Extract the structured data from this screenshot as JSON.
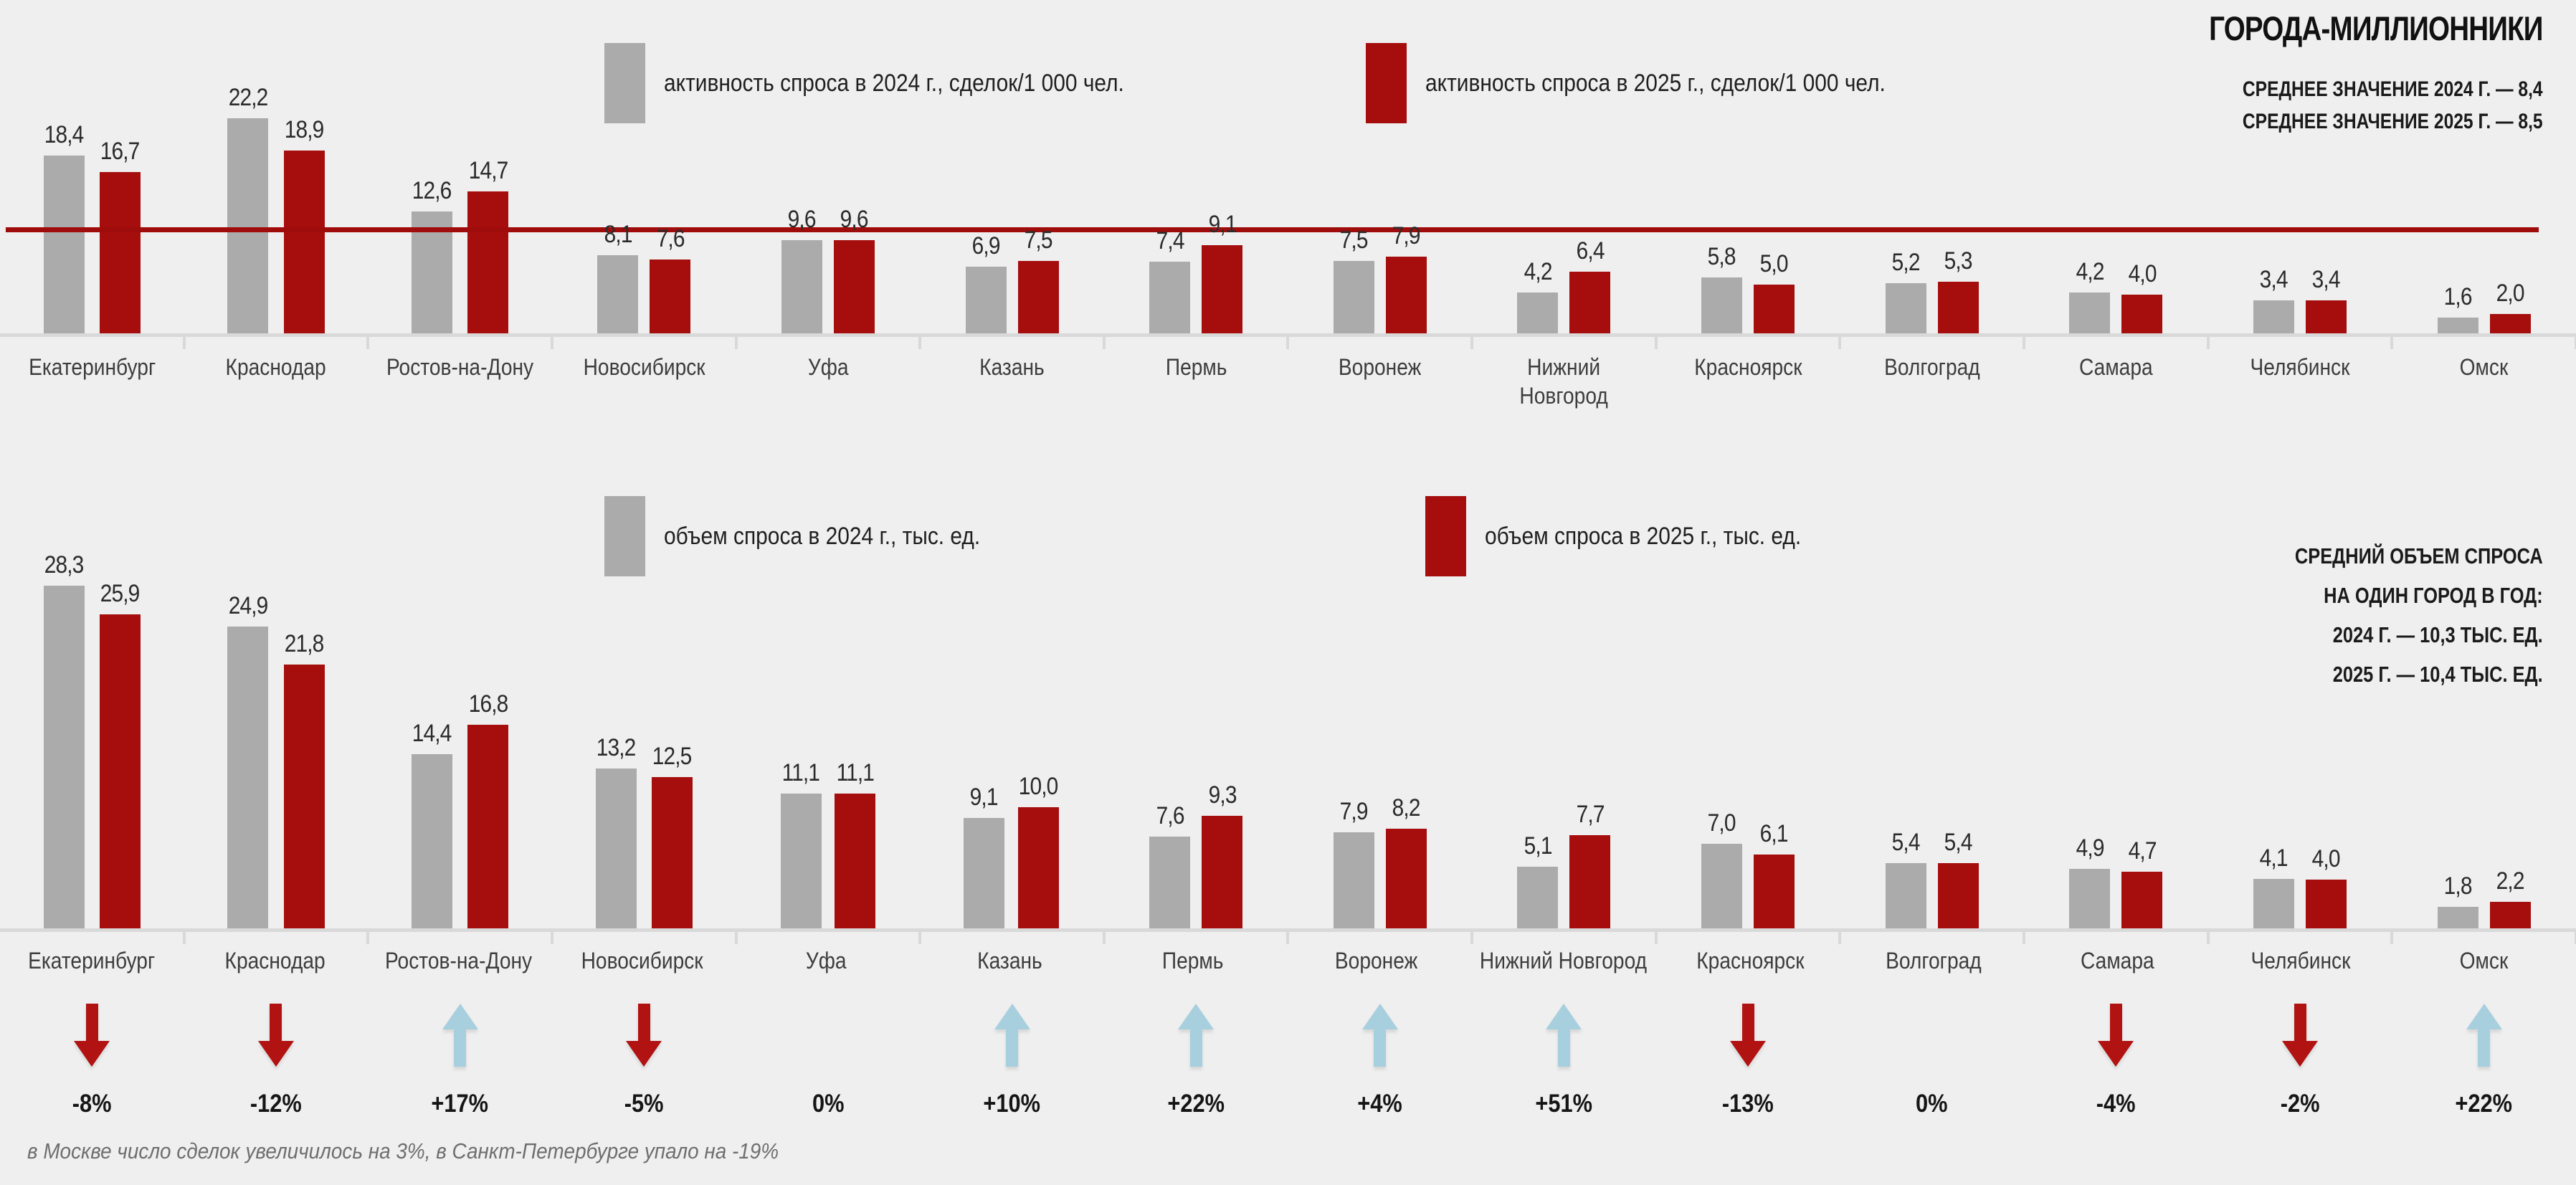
{
  "page_title": "ГОРОДА-МИЛЛИОННИКИ",
  "footer_note": "в Москве число сделок увеличилось на 3%, в Санкт-Петербурге упало на -19%",
  "colors": {
    "background": "#efefef",
    "bar_2024": "#ababab",
    "bar_2025": "#a50e0d",
    "avg_line": "#9e0c0b",
    "arrow_up": "#a7cfdd",
    "arrow_down": "#b01312",
    "axis": "#d9d9d9"
  },
  "chart_data": [
    {
      "type": "bar",
      "name": "demand-activity",
      "legend": [
        {
          "label": "активность спроса в 2024 г., сделок/1 000 чел.",
          "color": "#ababab"
        },
        {
          "label": "активность спроса в 2025 г., сделок/1 000 чел.",
          "color": "#a50e0d"
        }
      ],
      "categories": [
        "Екатеринбург",
        "Краснодар",
        "Ростов-на-Дону",
        "Новосибирск",
        "Уфа",
        "Казань",
        "Пермь",
        "Воронеж",
        "Нижний Новгород",
        "Красноярск",
        "Волгоград",
        "Самара",
        "Челябинск",
        "Омск"
      ],
      "categories_display": [
        "Екатеринбург",
        "Краснодар",
        "Ростов-на-Дону",
        "Новосибирск",
        "Уфа",
        "Казань",
        "Пермь",
        "Воронеж",
        "Нижний\nНовгород",
        "Красноярск",
        "Волгоград",
        "Самара",
        "Челябинск",
        "Омск"
      ],
      "series": [
        {
          "name": "активность спроса в 2024 г., сделок/1 000 чел.",
          "values": [
            18.4,
            22.2,
            12.6,
            8.1,
            9.6,
            6.9,
            7.4,
            7.5,
            4.2,
            5.8,
            5.2,
            4.2,
            3.4,
            1.6
          ]
        },
        {
          "name": "активность спроса в 2025 г., сделок/1 000 чел.",
          "values": [
            16.7,
            18.9,
            14.7,
            7.6,
            9.6,
            7.5,
            9.1,
            7.9,
            6.4,
            5.0,
            5.3,
            4.0,
            3.4,
            2.0
          ]
        }
      ],
      "average_2024": 8.4,
      "average_2025": 8.5,
      "average_labels": [
        "СРЕДНЕЕ ЗНАЧЕНИЕ 2024 Г. — 8,4",
        "СРЕДНЕЕ ЗНАЧЕНИЕ 2025 Г. — 8,5"
      ],
      "ylim": [
        0,
        24
      ],
      "grid": false,
      "legend_position": "top"
    },
    {
      "type": "bar",
      "name": "demand-volume",
      "legend": [
        {
          "label": "объем спроса в 2024 г., тыс. ед.",
          "color": "#ababab"
        },
        {
          "label": "объем спроса в 2025 г., тыс. ед.",
          "color": "#a50e0d"
        }
      ],
      "categories": [
        "Екатеринбург",
        "Краснодар",
        "Ростов-на-Дону",
        "Новосибирск",
        "Уфа",
        "Казань",
        "Пермь",
        "Воронеж",
        "Нижний Новгород",
        "Красноярск",
        "Волгоград",
        "Самара",
        "Челябинск",
        "Омск"
      ],
      "series": [
        {
          "name": "объем спроса в 2024 г., тыс. ед.",
          "values": [
            28.3,
            24.9,
            14.4,
            13.2,
            11.1,
            9.1,
            7.6,
            7.9,
            5.1,
            7.0,
            5.4,
            4.9,
            4.1,
            1.8
          ]
        },
        {
          "name": "объем спроса в 2025 г., тыс. ед.",
          "values": [
            25.9,
            21.8,
            16.8,
            12.5,
            11.1,
            10.0,
            9.3,
            8.2,
            7.7,
            6.1,
            5.4,
            4.7,
            4.0,
            2.2
          ]
        }
      ],
      "annotation": [
        "СРЕДНИЙ ОБЪЕМ СПРОСА",
        "НА ОДИН ГОРОД В ГОД:",
        "2024 Г. — 10,3 ТЫС. ЕД.",
        "2025 Г. — 10,4 ТЫС. ЕД."
      ],
      "changes": [
        {
          "city": "Екатеринбург",
          "direction": "down",
          "label": "-8%"
        },
        {
          "city": "Краснодар",
          "direction": "down",
          "label": "-12%"
        },
        {
          "city": "Ростов-на-Дону",
          "direction": "up",
          "label": "+17%"
        },
        {
          "city": "Новосибирск",
          "direction": "down",
          "label": "-5%"
        },
        {
          "city": "Уфа",
          "direction": "none",
          "label": "0%"
        },
        {
          "city": "Казань",
          "direction": "up",
          "label": "+10%"
        },
        {
          "city": "Пермь",
          "direction": "up",
          "label": "+22%"
        },
        {
          "city": "Воронеж",
          "direction": "up",
          "label": "+4%"
        },
        {
          "city": "Нижний Новгород",
          "direction": "up",
          "label": "+51%"
        },
        {
          "city": "Красноярск",
          "direction": "down",
          "label": "-13%"
        },
        {
          "city": "Волгоград",
          "direction": "none",
          "label": "0%"
        },
        {
          "city": "Самара",
          "direction": "down",
          "label": "-4%"
        },
        {
          "city": "Челябинск",
          "direction": "down",
          "label": "-2%"
        },
        {
          "city": "Омск",
          "direction": "up",
          "label": "+22%"
        }
      ],
      "ylim": [
        0,
        30
      ],
      "grid": false,
      "legend_position": "top"
    }
  ]
}
